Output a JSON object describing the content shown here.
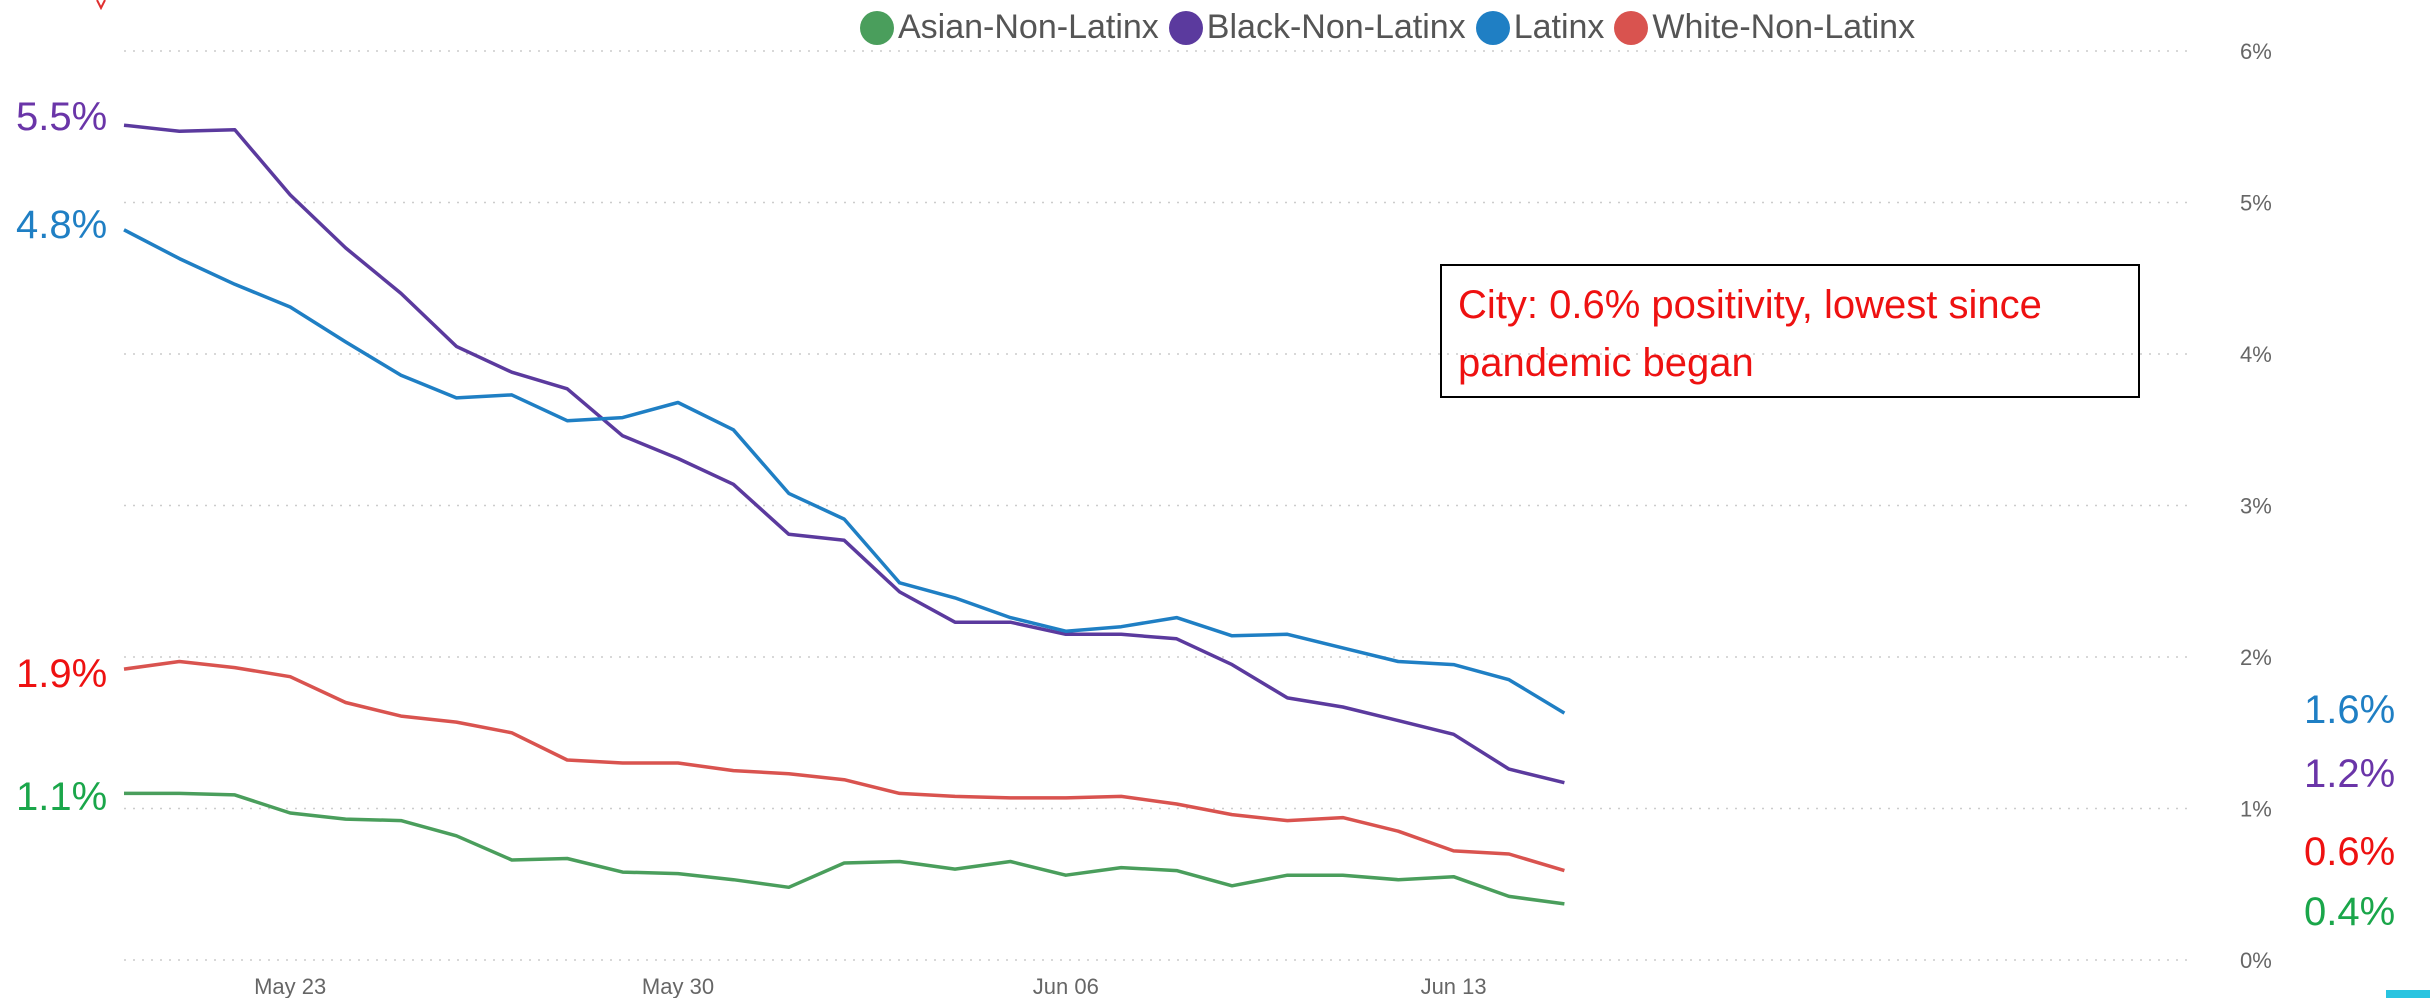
{
  "chart_data": {
    "type": "line",
    "title": "",
    "xlabel": "",
    "ylabel": "",
    "x": [
      "May 20",
      "May 21",
      "May 22",
      "May 23",
      "May 24",
      "May 25",
      "May 26",
      "May 27",
      "May 28",
      "May 29",
      "May 30",
      "May 31",
      "Jun 01",
      "Jun 02",
      "Jun 03",
      "Jun 04",
      "Jun 05",
      "Jun 06",
      "Jun 07",
      "Jun 08",
      "Jun 09",
      "Jun 10",
      "Jun 11",
      "Jun 12",
      "Jun 13",
      "Jun 14",
      "Jun 15"
    ],
    "x_ticks": [
      "May 23",
      "May 30",
      "Jun 06",
      "Jun 13"
    ],
    "y_ticks": [
      "0%",
      "1%",
      "2%",
      "3%",
      "4%",
      "5%",
      "6%"
    ],
    "ylim": [
      0,
      6
    ],
    "grid": true,
    "legend_position": "top",
    "series": [
      {
        "name": "Asian-Non-Latinx",
        "color": "#4a9e5c",
        "values": [
          1.1,
          1.1,
          1.09,
          0.97,
          0.93,
          0.92,
          0.82,
          0.66,
          0.67,
          0.58,
          0.57,
          0.53,
          0.48,
          0.64,
          0.65,
          0.6,
          0.65,
          0.56,
          0.61,
          0.59,
          0.49,
          0.56,
          0.56,
          0.53,
          0.55,
          0.42,
          0.37
        ],
        "start_label": "1.1%",
        "end_label": "0.4%",
        "label_color": "#1aa64a"
      },
      {
        "name": "Black-Non-Latinx",
        "color": "#5b3a9e",
        "values": [
          5.51,
          5.47,
          5.48,
          5.05,
          4.7,
          4.4,
          4.05,
          3.88,
          3.77,
          3.46,
          3.31,
          3.14,
          2.81,
          2.77,
          2.43,
          2.23,
          2.23,
          2.15,
          2.15,
          2.12,
          1.95,
          1.73,
          1.67,
          1.58,
          1.49,
          1.26,
          1.17
        ],
        "start_label": "5.5%",
        "end_label": "1.2%",
        "label_color": "#6a35a8"
      },
      {
        "name": "Latinx",
        "color": "#1f7fc4",
        "values": [
          4.82,
          4.63,
          4.46,
          4.31,
          4.08,
          3.86,
          3.71,
          3.73,
          3.56,
          3.58,
          3.68,
          3.5,
          3.08,
          2.91,
          2.49,
          2.39,
          2.26,
          2.17,
          2.2,
          2.26,
          2.14,
          2.15,
          2.06,
          1.97,
          1.95,
          1.85,
          1.63
        ],
        "start_label": "4.8%",
        "end_label": "1.6%",
        "label_color": "#1f7fc4"
      },
      {
        "name": "White-Non-Latinx",
        "color": "#d9534f",
        "values": [
          1.92,
          1.97,
          1.93,
          1.87,
          1.7,
          1.61,
          1.57,
          1.5,
          1.32,
          1.3,
          1.3,
          1.25,
          1.23,
          1.19,
          1.1,
          1.08,
          1.07,
          1.07,
          1.08,
          1.03,
          0.96,
          0.92,
          0.94,
          0.85,
          0.72,
          0.7,
          0.59
        ],
        "start_label": "1.9%",
        "end_label": "0.6%",
        "label_color": "#ee1111"
      }
    ],
    "annotation": "City: 0.6% positivity, lowest since pandemic began"
  }
}
